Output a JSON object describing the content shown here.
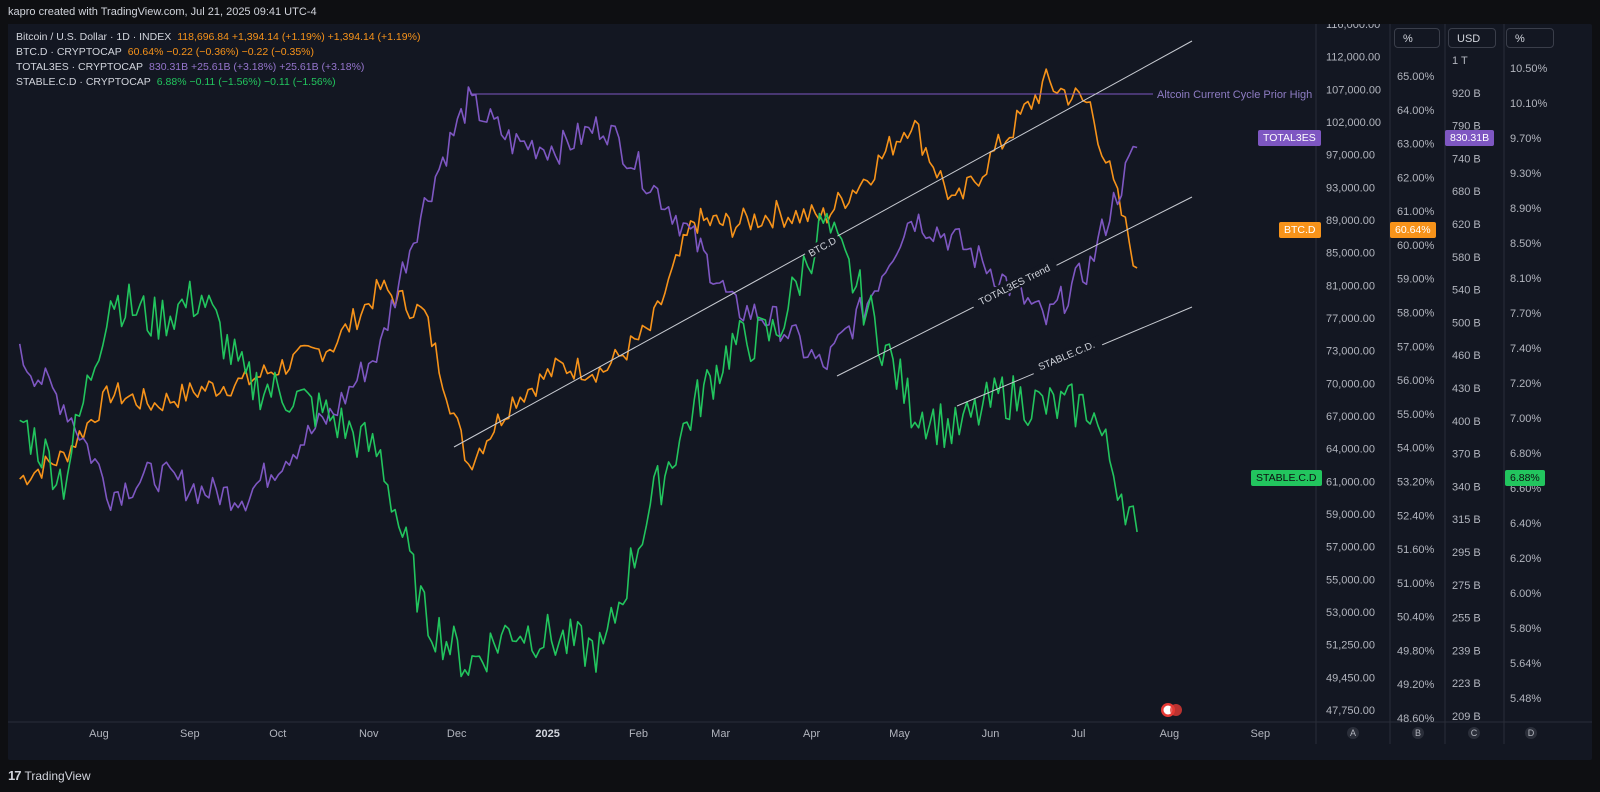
{
  "header": {
    "credit": "kapro created with TradingView.com, Jul 21, 2025 09:41 UTC-4"
  },
  "legend": [
    {
      "name": "Bitcoin / U.S. Dollar · 1D · INDEX",
      "value": "118,696.84 +1,394.14 (+1.19%) +1,394.14 (+1.19%)",
      "color": "#f7931a"
    },
    {
      "name": "BTC.D · CRYPTOCAP",
      "value": "60.64% −0.22 (−0.36%) −0.22 (−0.35%)",
      "color": "#f7931a"
    },
    {
      "name": "TOTAL3ES · CRYPTOCAP",
      "value": "830.31B +25.61B (+3.18%) +25.61B (+3.18%)",
      "color": "#7e57c2"
    },
    {
      "name": "STABLE.C.D · CRYPTOCAP",
      "value": "6.88% −0.11 (−1.56%) −0.11 (−1.56%)",
      "color": "#22c55e"
    }
  ],
  "colors": {
    "btcd": "#f7931a",
    "total3es": "#7e57c2",
    "stable": "#22c55e",
    "background": "#131722",
    "trendline": "#c8cbd2"
  },
  "axes": {
    "headers": {
      "a": "%",
      "usd": "USD",
      "d": "%"
    },
    "price_ticks": [
      "116,000.00",
      "112,000.00",
      "107,000.00",
      "102,000.00",
      "97,000.00",
      "93,000.00",
      "89,000.00",
      "85,000.00",
      "81,000.00",
      "77,000.00",
      "73,000.00",
      "70,000.00",
      "67,000.00",
      "64,000.00",
      "61,000.00",
      "59,000.00",
      "57,000.00",
      "55,000.00",
      "53,000.00",
      "51,250.00",
      "49,450.00",
      "47,750.00"
    ],
    "btcd_ticks": [
      "65.00%",
      "64.00%",
      "63.00%",
      "62.00%",
      "61.00%",
      "60.00%",
      "59.00%",
      "58.00%",
      "57.00%",
      "56.00%",
      "55.00%",
      "54.00%",
      "53.20%",
      "52.40%",
      "51.60%",
      "51.00%",
      "50.40%",
      "49.80%",
      "49.20%",
      "48.60%"
    ],
    "usd_ticks": [
      "1 T",
      "920 B",
      "790 B",
      "740 B",
      "680 B",
      "620 B",
      "580 B",
      "540 B",
      "500 B",
      "460 B",
      "430 B",
      "400 B",
      "370 B",
      "340 B",
      "315 B",
      "295 B",
      "275 B",
      "255 B",
      "239 B",
      "223 B",
      "209 B"
    ],
    "stable_ticks": [
      "10.50%",
      "10.10%",
      "9.70%",
      "9.30%",
      "8.90%",
      "8.50%",
      "8.10%",
      "7.70%",
      "7.40%",
      "7.20%",
      "7.00%",
      "6.80%",
      "6.60%",
      "6.40%",
      "6.20%",
      "6.00%",
      "5.80%",
      "5.64%",
      "5.48%"
    ],
    "pane_letters": [
      "A",
      "B",
      "C",
      "D"
    ]
  },
  "time_axis": [
    "Aug",
    "Sep",
    "Oct",
    "Nov",
    "Dec",
    "2025",
    "Feb",
    "Mar",
    "Apr",
    "May",
    "Jun",
    "Jul",
    "Aug",
    "Sep"
  ],
  "tags": {
    "total3es": "TOTAL3ES",
    "total3es_value": "830.31B",
    "btcd": "BTC.D",
    "btcd_value": "60.64%",
    "stable": "STABLE.C.D",
    "stable_value": "6.88%"
  },
  "annotations": {
    "prior_high": "Altcoin Current Cycle Prior High",
    "btcd_trend": "BTC.D",
    "total3_trend": "TOTAL3ES Trend",
    "stable_trend": "STABLE.C.D."
  },
  "chart_data": {
    "type": "line",
    "x": [
      "2024-07-05",
      "2024-07-20",
      "2024-08-05",
      "2024-08-20",
      "2024-09-05",
      "2024-09-20",
      "2024-10-05",
      "2024-10-20",
      "2024-11-05",
      "2024-11-20",
      "2024-12-05",
      "2024-12-20",
      "2025-01-05",
      "2025-01-20",
      "2025-02-05",
      "2025-02-20",
      "2025-03-05",
      "2025-03-20",
      "2025-04-05",
      "2025-04-20",
      "2025-05-05",
      "2025-05-20",
      "2025-06-05",
      "2025-06-20",
      "2025-07-05",
      "2025-07-21"
    ],
    "series": [
      {
        "name": "BTC.D",
        "unit": "%",
        "values": [
          55.0,
          55.6,
          57.3,
          57.0,
          57.4,
          57.6,
          58.1,
          58.6,
          60.1,
          59.4,
          55.4,
          57.1,
          58.0,
          57.9,
          59.0,
          61.9,
          61.8,
          62.1,
          62.0,
          63.1,
          64.6,
          62.3,
          64.0,
          65.6,
          65.0,
          60.64
        ]
      },
      {
        "name": "TOTAL3ES",
        "unit": "USD",
        "values": [
          495,
          440,
          352,
          370,
          355,
          350,
          390,
          430,
          505,
          720,
          930,
          840,
          830,
          880,
          760,
          660,
          560,
          540,
          480,
          565,
          700,
          660,
          600,
          540,
          620,
          830.31
        ]
      },
      {
        "name": "STABLE.C.D",
        "unit": "%",
        "values": [
          7.8,
          7.3,
          8.8,
          8.6,
          8.8,
          8.1,
          8.0,
          7.8,
          7.5,
          6.2,
          5.8,
          6.1,
          6.0,
          5.9,
          7.1,
          7.9,
          8.4,
          8.5,
          9.4,
          8.7,
          7.9,
          7.7,
          8.0,
          7.9,
          7.9,
          6.88
        ]
      }
    ],
    "ylim": {
      "BTC.D": [
        48.6,
        66.1
      ],
      "TOTAL3ES": [
        200,
        1100
      ],
      "STABLE.C.D": [
        5.4,
        10.8
      ]
    },
    "grid": false,
    "legend": "top-left"
  }
}
